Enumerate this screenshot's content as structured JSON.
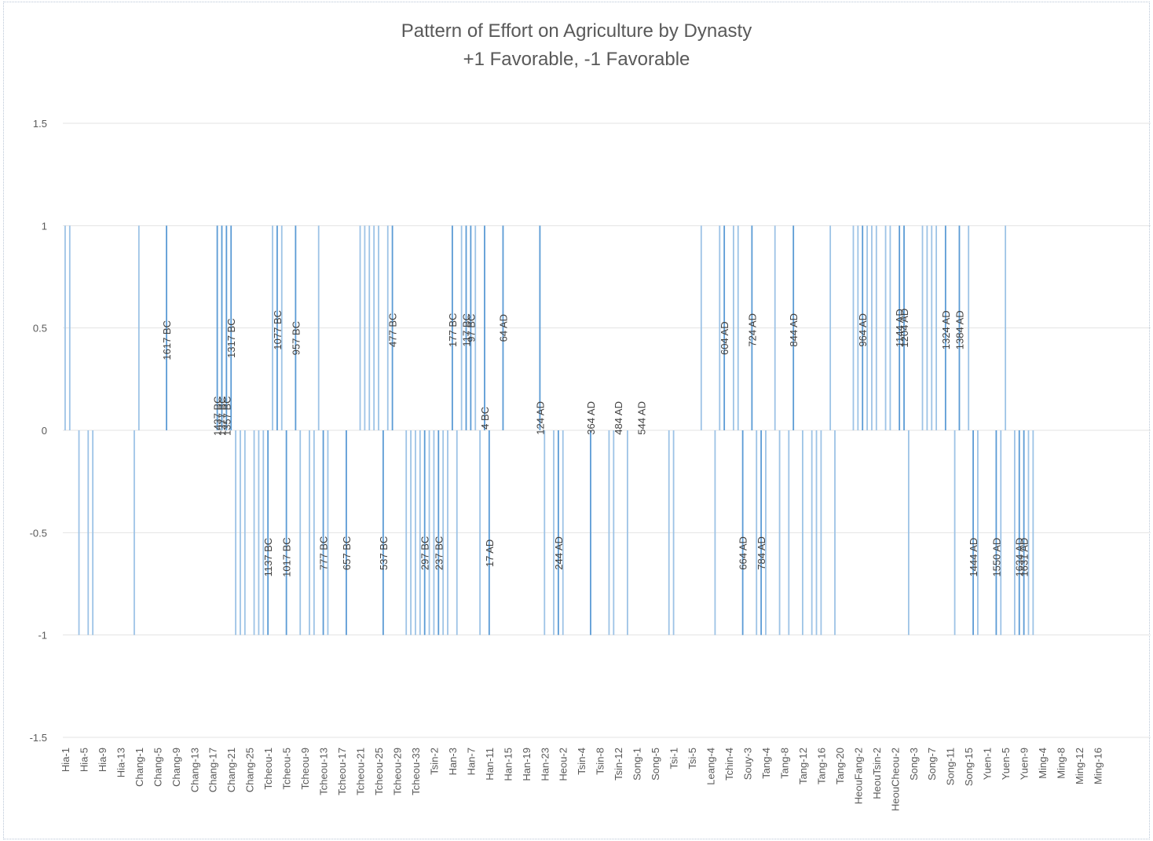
{
  "chart_data": {
    "type": "bar",
    "title": "Pattern of Effort on Agriculture by Dynasty",
    "subtitle": "+1 Favorable, -1 Favorable",
    "xlabel": "",
    "ylabel": "",
    "ylim": [
      -1.5,
      1.5
    ],
    "yticks": [
      "1.5",
      "1",
      "0.5",
      "0",
      "-0.5",
      "-1",
      "-1.5"
    ],
    "ytick_values": [
      1.5,
      1,
      0.5,
      0,
      -0.5,
      -1,
      -1.5
    ],
    "grid": true,
    "legend": "none",
    "bar_color": "#9dc3e6",
    "bar_color_dark": "#5b9bd5",
    "category_count": 236,
    "x_tick_labels": [
      "Hia-1",
      "Hia-5",
      "Hia-9",
      "Hia-13",
      "Chang-1",
      "Chang-5",
      "Chang-9",
      "Chang-13",
      "Chang-17",
      "Chang-21",
      "Chang-25",
      "Tcheou-1",
      "Tcheou-5",
      "Tcheou-9",
      "Tcheou-13",
      "Tcheou-17",
      "Tcheou-21",
      "Tcheou-25",
      "Tcheou-29",
      "Tcheou-33",
      "Tsin-2",
      "Han-3",
      "Han-7",
      "Han-11",
      "Han-15",
      "Han-19",
      "Han-23",
      "Heou-2",
      "Tsin-4",
      "Tsin-8",
      "Tsin-12",
      "Song-1",
      "Song-5",
      "Tsi-1",
      "Tsi-5",
      "Leang-4",
      "Tchin-4",
      "Souy-3",
      "Tang-4",
      "Tang-8",
      "Tang-12",
      "Tang-16",
      "Tang-20",
      "HeouFang-2",
      "HeouTsin-2",
      "HeouCheou-2",
      "Song-3",
      "Song-7",
      "Song-11",
      "Song-15",
      "Yuen-1",
      "Yuen-5",
      "Yuen-9",
      "Ming-4",
      "Ming-8",
      "Ming-12",
      "Ming-16"
    ],
    "bars": [
      {
        "i": 0,
        "v": 1
      },
      {
        "i": 1,
        "v": 1
      },
      {
        "i": 3,
        "v": -1
      },
      {
        "i": 5,
        "v": -1
      },
      {
        "i": 6,
        "v": -1
      },
      {
        "i": 15,
        "v": -1
      },
      {
        "i": 16,
        "v": 1
      },
      {
        "i": 22,
        "v": 1,
        "label": "1617 BC"
      },
      {
        "i": 33,
        "v": 1,
        "label": "1437 BC"
      },
      {
        "i": 34,
        "v": 1,
        "label": "1377 BC"
      },
      {
        "i": 35,
        "v": 1,
        "label": "1357 BC"
      },
      {
        "i": 36,
        "v": 1,
        "label": "1317 BC"
      },
      {
        "i": 37,
        "v": -1
      },
      {
        "i": 38,
        "v": -1
      },
      {
        "i": 39,
        "v": -1
      },
      {
        "i": 41,
        "v": -1
      },
      {
        "i": 42,
        "v": -1
      },
      {
        "i": 43,
        "v": -1
      },
      {
        "i": 44,
        "v": -1,
        "label": "1137 BC"
      },
      {
        "i": 45,
        "v": 1
      },
      {
        "i": 46,
        "v": 1,
        "label": "1077 BC"
      },
      {
        "i": 47,
        "v": 1
      },
      {
        "i": 48,
        "v": -1,
        "label": "1017 BC"
      },
      {
        "i": 50,
        "v": 1,
        "label": "957 BC"
      },
      {
        "i": 51,
        "v": -1
      },
      {
        "i": 53,
        "v": -1
      },
      {
        "i": 54,
        "v": -1
      },
      {
        "i": 55,
        "v": 1
      },
      {
        "i": 56,
        "v": -1,
        "label": "777 BC"
      },
      {
        "i": 57,
        "v": -1
      },
      {
        "i": 61,
        "v": -1,
        "label": "657 BC"
      },
      {
        "i": 64,
        "v": 1
      },
      {
        "i": 65,
        "v": 1
      },
      {
        "i": 66,
        "v": 1
      },
      {
        "i": 67,
        "v": 1
      },
      {
        "i": 68,
        "v": 1
      },
      {
        "i": 69,
        "v": -1,
        "label": "537 BC"
      },
      {
        "i": 70,
        "v": 1
      },
      {
        "i": 71,
        "v": 1,
        "label": "477 BC"
      },
      {
        "i": 74,
        "v": -1
      },
      {
        "i": 75,
        "v": -1
      },
      {
        "i": 76,
        "v": -1
      },
      {
        "i": 77,
        "v": -1
      },
      {
        "i": 78,
        "v": -1,
        "label": "297 BC"
      },
      {
        "i": 79,
        "v": -1
      },
      {
        "i": 80,
        "v": -1
      },
      {
        "i": 81,
        "v": -1,
        "label": "237 BC"
      },
      {
        "i": 82,
        "v": -1
      },
      {
        "i": 83,
        "v": -1
      },
      {
        "i": 84,
        "v": 1,
        "label": "177 BC"
      },
      {
        "i": 85,
        "v": -1
      },
      {
        "i": 86,
        "v": 1
      },
      {
        "i": 87,
        "v": 1,
        "label": "117 BC"
      },
      {
        "i": 88,
        "v": 1,
        "label": "97 BC"
      },
      {
        "i": 89,
        "v": 1
      },
      {
        "i": 90,
        "v": -1
      },
      {
        "i": 91,
        "v": 1,
        "label": "4 BC"
      },
      {
        "i": 92,
        "v": -1,
        "label": "17 AD"
      },
      {
        "i": 95,
        "v": 1,
        "label": "64 AD"
      },
      {
        "i": 103,
        "v": 1,
        "label": "124 AD"
      },
      {
        "i": 104,
        "v": -1
      },
      {
        "i": 106,
        "v": -1
      },
      {
        "i": 107,
        "v": -1,
        "label": "244 AD"
      },
      {
        "i": 108,
        "v": -1
      },
      {
        "i": 114,
        "v": -1,
        "label": "364 AD"
      },
      {
        "i": 118,
        "v": -1
      },
      {
        "i": 119,
        "v": -1
      },
      {
        "i": 122,
        "v": -1
      },
      {
        "i": 131,
        "v": -1
      },
      {
        "i": 132,
        "v": -1
      },
      {
        "i": 138,
        "v": 1
      },
      {
        "i": 141,
        "v": -1
      },
      {
        "i": 142,
        "v": 1
      },
      {
        "i": 143,
        "v": 1,
        "label": "604 AD"
      },
      {
        "i": 145,
        "v": 1
      },
      {
        "i": 146,
        "v": 1
      },
      {
        "i": 147,
        "v": -1,
        "label": "664 AD"
      },
      {
        "i": 149,
        "v": 1,
        "label": "724 AD"
      },
      {
        "i": 150,
        "v": -1
      },
      {
        "i": 151,
        "v": -1,
        "label": "784 AD"
      },
      {
        "i": 152,
        "v": -1
      },
      {
        "i": 154,
        "v": 1
      },
      {
        "i": 155,
        "v": -1
      },
      {
        "i": 157,
        "v": -1
      },
      {
        "i": 158,
        "v": 1,
        "label": "844 AD"
      },
      {
        "i": 160,
        "v": -1
      },
      {
        "i": 162,
        "v": -1
      },
      {
        "i": 163,
        "v": -1
      },
      {
        "i": 164,
        "v": -1
      },
      {
        "i": 166,
        "v": 1
      },
      {
        "i": 167,
        "v": -1
      },
      {
        "i": 171,
        "v": 1
      },
      {
        "i": 172,
        "v": 1
      },
      {
        "i": 173,
        "v": 1,
        "label": "964 AD"
      },
      {
        "i": 174,
        "v": 1
      },
      {
        "i": 175,
        "v": 1
      },
      {
        "i": 176,
        "v": 1
      },
      {
        "i": 178,
        "v": 1
      },
      {
        "i": 179,
        "v": 1
      },
      {
        "i": 181,
        "v": 1,
        "label": "1144 AD"
      },
      {
        "i": 182,
        "v": 1,
        "label": "1204 AD"
      },
      {
        "i": 183,
        "v": -1
      },
      {
        "i": 186,
        "v": 1
      },
      {
        "i": 187,
        "v": 1
      },
      {
        "i": 188,
        "v": 1
      },
      {
        "i": 189,
        "v": 1
      },
      {
        "i": 191,
        "v": 1,
        "label": "1324 AD"
      },
      {
        "i": 193,
        "v": -1
      },
      {
        "i": 194,
        "v": 1,
        "label": "1384 AD"
      },
      {
        "i": 196,
        "v": 1
      },
      {
        "i": 197,
        "v": -1,
        "label": "1444 AD"
      },
      {
        "i": 198,
        "v": -1
      },
      {
        "i": 202,
        "v": -1,
        "label": "1550 AD"
      },
      {
        "i": 203,
        "v": -1
      },
      {
        "i": 204,
        "v": 1
      },
      {
        "i": 206,
        "v": -1
      },
      {
        "i": 207,
        "v": -1,
        "label": "1634 AD"
      },
      {
        "i": 208,
        "v": -1,
        "label": "1631 AD"
      },
      {
        "i": 209,
        "v": -1
      },
      {
        "i": 210,
        "v": -1
      }
    ],
    "point_labels": [
      {
        "text": "1617 BC",
        "i": 22,
        "y": 0.44
      },
      {
        "text": "1437 BC",
        "i": 33,
        "y": 0.07
      },
      {
        "text": "1377 BC",
        "i": 34,
        "y": 0.07
      },
      {
        "text": "1357 BC",
        "i": 35,
        "y": 0.07
      },
      {
        "text": "1317 BC",
        "i": 36,
        "y": 0.45
      },
      {
        "text": "1077 BC",
        "i": 46,
        "y": 0.49
      },
      {
        "text": "957 BC",
        "i": 50,
        "y": 0.45
      },
      {
        "text": "477 BC",
        "i": 71,
        "y": 0.49
      },
      {
        "text": "177 BC",
        "i": 84,
        "y": 0.49
      },
      {
        "text": "117 BC",
        "i": 87,
        "y": 0.49
      },
      {
        "text": "97 BC",
        "i": 88,
        "y": 0.5
      },
      {
        "text": "4 BC",
        "i": 91,
        "y": 0.06
      },
      {
        "text": "64 AD",
        "i": 95,
        "y": 0.5
      },
      {
        "text": "124 AD",
        "i": 103,
        "y": 0.06
      },
      {
        "text": "364 AD",
        "i": 114,
        "y": 0.06
      },
      {
        "text": "484 AD",
        "i": 120,
        "y": 0.06
      },
      {
        "text": "544 AD",
        "i": 125,
        "y": 0.06
      },
      {
        "text": "604 AD",
        "i": 143,
        "y": 0.45
      },
      {
        "text": "724 AD",
        "i": 149,
        "y": 0.49
      },
      {
        "text": "844 AD",
        "i": 158,
        "y": 0.49
      },
      {
        "text": "964 AD",
        "i": 173,
        "y": 0.49
      },
      {
        "text": "1144 AD",
        "i": 181,
        "y": 0.5
      },
      {
        "text": "1204 AD",
        "i": 182,
        "y": 0.5
      },
      {
        "text": "1324 AD",
        "i": 191,
        "y": 0.49
      },
      {
        "text": "1384 AD",
        "i": 194,
        "y": 0.49
      },
      {
        "text": "1137 BC",
        "i": 44,
        "y": -0.62
      },
      {
        "text": "1017 BC",
        "i": 48,
        "y": -0.62
      },
      {
        "text": "777 BC",
        "i": 56,
        "y": -0.6
      },
      {
        "text": "657 BC",
        "i": 61,
        "y": -0.6
      },
      {
        "text": "537 BC",
        "i": 69,
        "y": -0.6
      },
      {
        "text": "297 BC",
        "i": 78,
        "y": -0.6
      },
      {
        "text": "237 BC",
        "i": 81,
        "y": -0.6
      },
      {
        "text": "17 AD",
        "i": 92,
        "y": -0.6
      },
      {
        "text": "244 AD",
        "i": 107,
        "y": -0.6
      },
      {
        "text": "664 AD",
        "i": 147,
        "y": -0.6
      },
      {
        "text": "784 AD",
        "i": 151,
        "y": -0.6
      },
      {
        "text": "1444 AD",
        "i": 197,
        "y": -0.62
      },
      {
        "text": "1550 AD",
        "i": 202,
        "y": -0.62
      },
      {
        "text": "1634 AD",
        "i": 207,
        "y": -0.62
      },
      {
        "text": "1631 AD",
        "i": 208,
        "y": -0.62
      }
    ]
  }
}
